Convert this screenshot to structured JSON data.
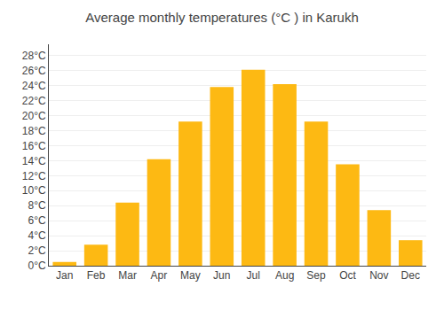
{
  "chart_data": {
    "type": "bar",
    "title": "Average monthly temperatures (°C ) in Karukh",
    "categories": [
      "Jan",
      "Feb",
      "Mar",
      "Apr",
      "May",
      "Jun",
      "Jul",
      "Aug",
      "Sep",
      "Oct",
      "Nov",
      "Dec"
    ],
    "values": [
      0.5,
      2.8,
      8.4,
      14.2,
      19.2,
      23.8,
      26.1,
      24.2,
      19.2,
      13.5,
      7.4,
      3.4
    ],
    "color": "#FDB913",
    "ylim": [
      0,
      29.5
    ],
    "yticks": [
      {
        "value": 0,
        "label": "0°C"
      },
      {
        "value": 2,
        "label": "2°C"
      },
      {
        "value": 4,
        "label": "4°C"
      },
      {
        "value": 6,
        "label": "6°C"
      },
      {
        "value": 8,
        "label": "8°C"
      },
      {
        "value": 10,
        "label": "10°C"
      },
      {
        "value": 12,
        "label": "12°C"
      },
      {
        "value": 14,
        "label": "14°C"
      },
      {
        "value": 16,
        "label": "16°C"
      },
      {
        "value": 18,
        "label": "18°C"
      },
      {
        "value": 20,
        "label": "20°C"
      },
      {
        "value": 22,
        "label": "22°C"
      },
      {
        "value": 24,
        "label": "24°C"
      },
      {
        "value": 26,
        "label": "26°C"
      },
      {
        "value": 28,
        "label": "28°C"
      }
    ],
    "grid": true
  }
}
